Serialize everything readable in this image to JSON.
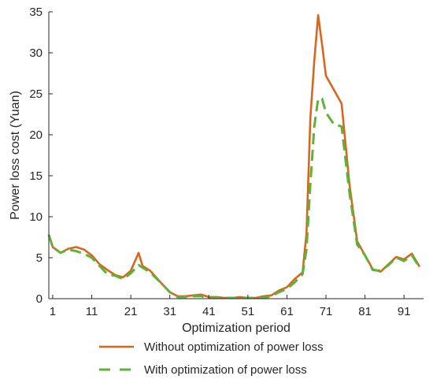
{
  "chart_data": {
    "type": "line",
    "title": "",
    "xlabel": "Optimization period",
    "ylabel": "Power loss cost (Yuan)",
    "xlim": [
      0,
      96
    ],
    "ylim": [
      0,
      35
    ],
    "xticks": [
      1,
      11,
      21,
      31,
      41,
      51,
      61,
      71,
      81,
      91
    ],
    "yticks": [
      0,
      5,
      10,
      15,
      20,
      25,
      30,
      35
    ],
    "grid": false,
    "legend_position": "bottom",
    "x": [
      0,
      1,
      3,
      5,
      7,
      9,
      11,
      13,
      15,
      17,
      19,
      21,
      23,
      24,
      26,
      29,
      31,
      33,
      35,
      37,
      39,
      41,
      43,
      45,
      47,
      49,
      51,
      53,
      55,
      57,
      59,
      61,
      63,
      65,
      66,
      67,
      68,
      69,
      70,
      71,
      73,
      75,
      77,
      79,
      81,
      83,
      85,
      87,
      89,
      91,
      93,
      95
    ],
    "series": [
      {
        "name": "Without optimization of power loss",
        "color": "#d9661f",
        "dash": "solid",
        "values": [
          7.8,
          6.3,
          5.6,
          6.1,
          6.3,
          6.0,
          5.3,
          4.2,
          3.5,
          2.9,
          2.6,
          3.4,
          5.6,
          4.0,
          3.4,
          1.8,
          0.8,
          0.3,
          0.3,
          0.4,
          0.5,
          0.2,
          0.2,
          0.1,
          0.1,
          0.2,
          0.1,
          0.1,
          0.3,
          0.4,
          1.0,
          1.4,
          2.4,
          3.2,
          8.0,
          22.0,
          29.0,
          34.6,
          31.0,
          27.2,
          25.5,
          23.8,
          14.0,
          7.0,
          5.3,
          3.6,
          3.3,
          4.2,
          5.1,
          4.8,
          5.5,
          3.9
        ]
      },
      {
        "name": "With optimization of power loss",
        "color": "#5eb237",
        "dash": "dashed",
        "values": [
          7.8,
          6.3,
          5.6,
          6.0,
          5.8,
          5.5,
          5.0,
          4.0,
          3.0,
          2.8,
          2.4,
          3.1,
          4.1,
          3.8,
          3.2,
          1.8,
          0.8,
          0.2,
          0.2,
          0.3,
          0.3,
          0.1,
          0.1,
          0.1,
          0.1,
          0.1,
          0.1,
          0.1,
          0.1,
          0.3,
          0.8,
          1.2,
          2.0,
          3.0,
          6.0,
          14.0,
          21.0,
          24.4,
          24.4,
          22.7,
          21.3,
          21.0,
          13.0,
          6.6,
          5.3,
          3.5,
          3.4,
          4.1,
          5.0,
          4.6,
          5.3,
          3.8
        ]
      }
    ]
  }
}
